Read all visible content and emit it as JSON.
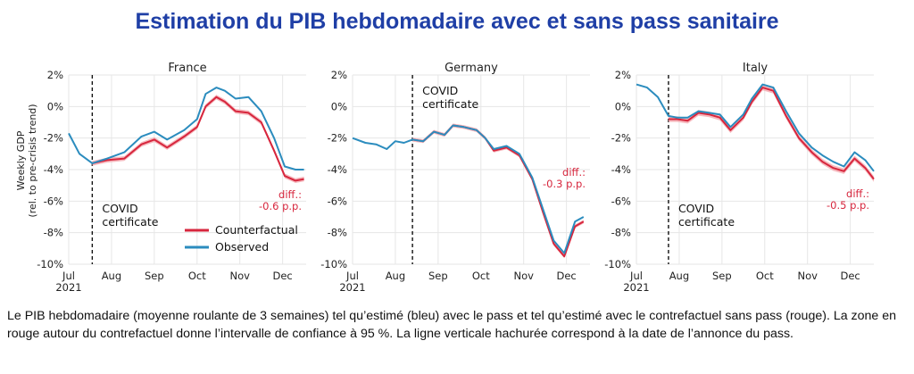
{
  "title": "Estimation du PIB hebdomadaire avec et sans pass sanitaire",
  "caption": "Le PIB hebdomadaire (moyenne roulante de 3 semaines) tel qu’estimé (bleu) avec le pass et tel qu’estimé avec le contrefactuel sans pass (rouge). La zone en rouge autour du contrefactuel donne l’intervalle de confiance à 95 %. La ligne verticale hachurée correspond à la date de l’annonce du pass.",
  "colors": {
    "counterfactual": "#d7263d",
    "band": "#f4a7ae",
    "observed": "#2b8cbe",
    "title": "#1f3fa6"
  },
  "chart_data": [
    {
      "type": "line",
      "title": "France",
      "ylabel": "Weekly GDP (rel. to pre-crisis trend)",
      "y_ticks": [
        "2%",
        "0%",
        "-2%",
        "-4%",
        "-6%",
        "-8%",
        "-10%"
      ],
      "x_ticks": [
        "Jul 2021",
        "Aug",
        "Sep",
        "Oct",
        "Nov",
        "Dec"
      ],
      "ylim": [
        -10,
        2
      ],
      "xlim": [
        0,
        5.55
      ],
      "grid": true,
      "legend": {
        "placement": "bottom-center",
        "entries": [
          "Counterfactual",
          "Observed"
        ]
      },
      "event": {
        "x": 0.55,
        "label_lines": [
          "COVID",
          "certificate"
        ]
      },
      "annotation": {
        "lines": [
          "diff.:",
          "-0.6 p.p."
        ]
      },
      "series": [
        {
          "name": "Observed",
          "x": [
            0,
            0.25,
            0.55,
            0.9,
            1.3,
            1.7,
            2.0,
            2.3,
            2.7,
            3.0,
            3.2,
            3.45,
            3.65,
            3.9,
            4.2,
            4.5,
            4.8,
            5.05,
            5.3,
            5.5
          ],
          "values": [
            -1.7,
            -3.0,
            -3.6,
            -3.3,
            -2.9,
            -1.9,
            -1.6,
            -2.1,
            -1.5,
            -0.8,
            0.8,
            1.2,
            1.0,
            0.5,
            0.6,
            -0.3,
            -2.0,
            -3.8,
            -4.0,
            -4.0
          ]
        },
        {
          "name": "Counterfactual",
          "x": [
            0.55,
            0.9,
            1.3,
            1.7,
            2.0,
            2.3,
            2.7,
            3.0,
            3.2,
            3.45,
            3.65,
            3.9,
            4.2,
            4.5,
            4.8,
            5.05,
            5.3,
            5.5
          ],
          "values": [
            -3.6,
            -3.4,
            -3.3,
            -2.4,
            -2.1,
            -2.6,
            -1.9,
            -1.3,
            0.0,
            0.6,
            0.3,
            -0.3,
            -0.4,
            -1.0,
            -2.8,
            -4.4,
            -4.7,
            -4.6
          ],
          "ci_halfwidth": 0.15
        }
      ]
    },
    {
      "type": "line",
      "title": "Germany",
      "y_ticks": [
        "2%",
        "0%",
        "-2%",
        "-4%",
        "-6%",
        "-8%",
        "-10%"
      ],
      "x_ticks": [
        "Jul 2021",
        "Aug",
        "Sep",
        "Oct",
        "Nov",
        "Dec"
      ],
      "ylim": [
        -10,
        2
      ],
      "xlim": [
        0,
        5.55
      ],
      "grid": true,
      "event": {
        "x": 1.4,
        "label_lines": [
          "COVID",
          "certificate"
        ]
      },
      "annotation": {
        "lines": [
          "diff.:",
          "-0.3 p.p."
        ]
      },
      "series": [
        {
          "name": "Observed",
          "x": [
            0,
            0.3,
            0.55,
            0.8,
            1.0,
            1.2,
            1.4,
            1.65,
            1.9,
            2.15,
            2.35,
            2.6,
            2.9,
            3.1,
            3.3,
            3.6,
            3.9,
            4.2,
            4.45,
            4.7,
            4.95,
            5.2,
            5.4
          ],
          "values": [
            -2.0,
            -2.3,
            -2.4,
            -2.7,
            -2.2,
            -2.3,
            -2.1,
            -2.2,
            -1.6,
            -1.8,
            -1.2,
            -1.3,
            -1.5,
            -2.0,
            -2.7,
            -2.5,
            -3.0,
            -4.5,
            -6.5,
            -8.5,
            -9.3,
            -7.3,
            -7.0
          ]
        },
        {
          "name": "Counterfactual",
          "x": [
            1.4,
            1.65,
            1.9,
            2.15,
            2.35,
            2.6,
            2.9,
            3.1,
            3.3,
            3.6,
            3.9,
            4.2,
            4.45,
            4.7,
            4.95,
            5.2,
            5.4
          ],
          "values": [
            -2.1,
            -2.2,
            -1.6,
            -1.8,
            -1.2,
            -1.3,
            -1.5,
            -2.0,
            -2.8,
            -2.6,
            -3.1,
            -4.6,
            -6.7,
            -8.7,
            -9.5,
            -7.6,
            -7.3
          ],
          "ci_halfwidth": 0.12
        }
      ]
    },
    {
      "type": "line",
      "title": "Italy",
      "y_ticks": [
        "2%",
        "0%",
        "-2%",
        "-4%",
        "-6%",
        "-8%",
        "-10%"
      ],
      "x_ticks": [
        "Jul 2021",
        "Aug",
        "Sep",
        "Oct",
        "Nov",
        "Dec"
      ],
      "ylim": [
        -10,
        2
      ],
      "xlim": [
        0,
        5.55
      ],
      "grid": true,
      "event": {
        "x": 0.75,
        "label_lines": [
          "COVID",
          "certificate"
        ]
      },
      "annotation": {
        "lines": [
          "diff.:",
          "-0.5 p.p."
        ]
      },
      "series": [
        {
          "name": "Observed",
          "x": [
            0,
            0.25,
            0.5,
            0.75,
            0.95,
            1.2,
            1.45,
            1.7,
            1.95,
            2.2,
            2.5,
            2.7,
            2.95,
            3.2,
            3.5,
            3.8,
            4.1,
            4.35,
            4.6,
            4.85,
            5.1,
            5.35,
            5.55
          ],
          "values": [
            1.4,
            1.2,
            0.6,
            -0.6,
            -0.7,
            -0.7,
            -0.3,
            -0.4,
            -0.5,
            -1.3,
            -0.5,
            0.5,
            1.4,
            1.2,
            -0.3,
            -1.7,
            -2.6,
            -3.1,
            -3.5,
            -3.8,
            -2.9,
            -3.4,
            -4.1
          ]
        },
        {
          "name": "Counterfactual",
          "x": [
            0.75,
            0.95,
            1.2,
            1.45,
            1.7,
            1.95,
            2.2,
            2.5,
            2.7,
            2.95,
            3.2,
            3.5,
            3.8,
            4.1,
            4.35,
            4.6,
            4.85,
            5.1,
            5.35,
            5.55
          ],
          "values": [
            -0.8,
            -0.8,
            -0.9,
            -0.4,
            -0.5,
            -0.7,
            -1.5,
            -0.7,
            0.3,
            1.2,
            1.0,
            -0.6,
            -2.0,
            -2.9,
            -3.5,
            -3.9,
            -4.1,
            -3.3,
            -3.9,
            -4.6
          ],
          "ci_halfwidth": 0.18
        }
      ]
    }
  ]
}
